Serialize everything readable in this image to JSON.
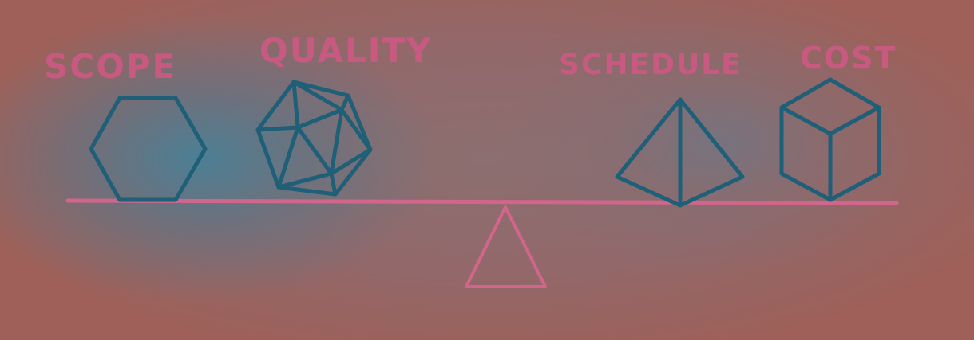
{
  "labels": {
    "scope": "SCOPE",
    "quality": "QUALITY",
    "schedule": "SCHEDULE",
    "cost": "COST"
  },
  "colors": {
    "shape_stroke": "#1f5f78",
    "beam": "#d2658c",
    "label": "#c85a82"
  }
}
